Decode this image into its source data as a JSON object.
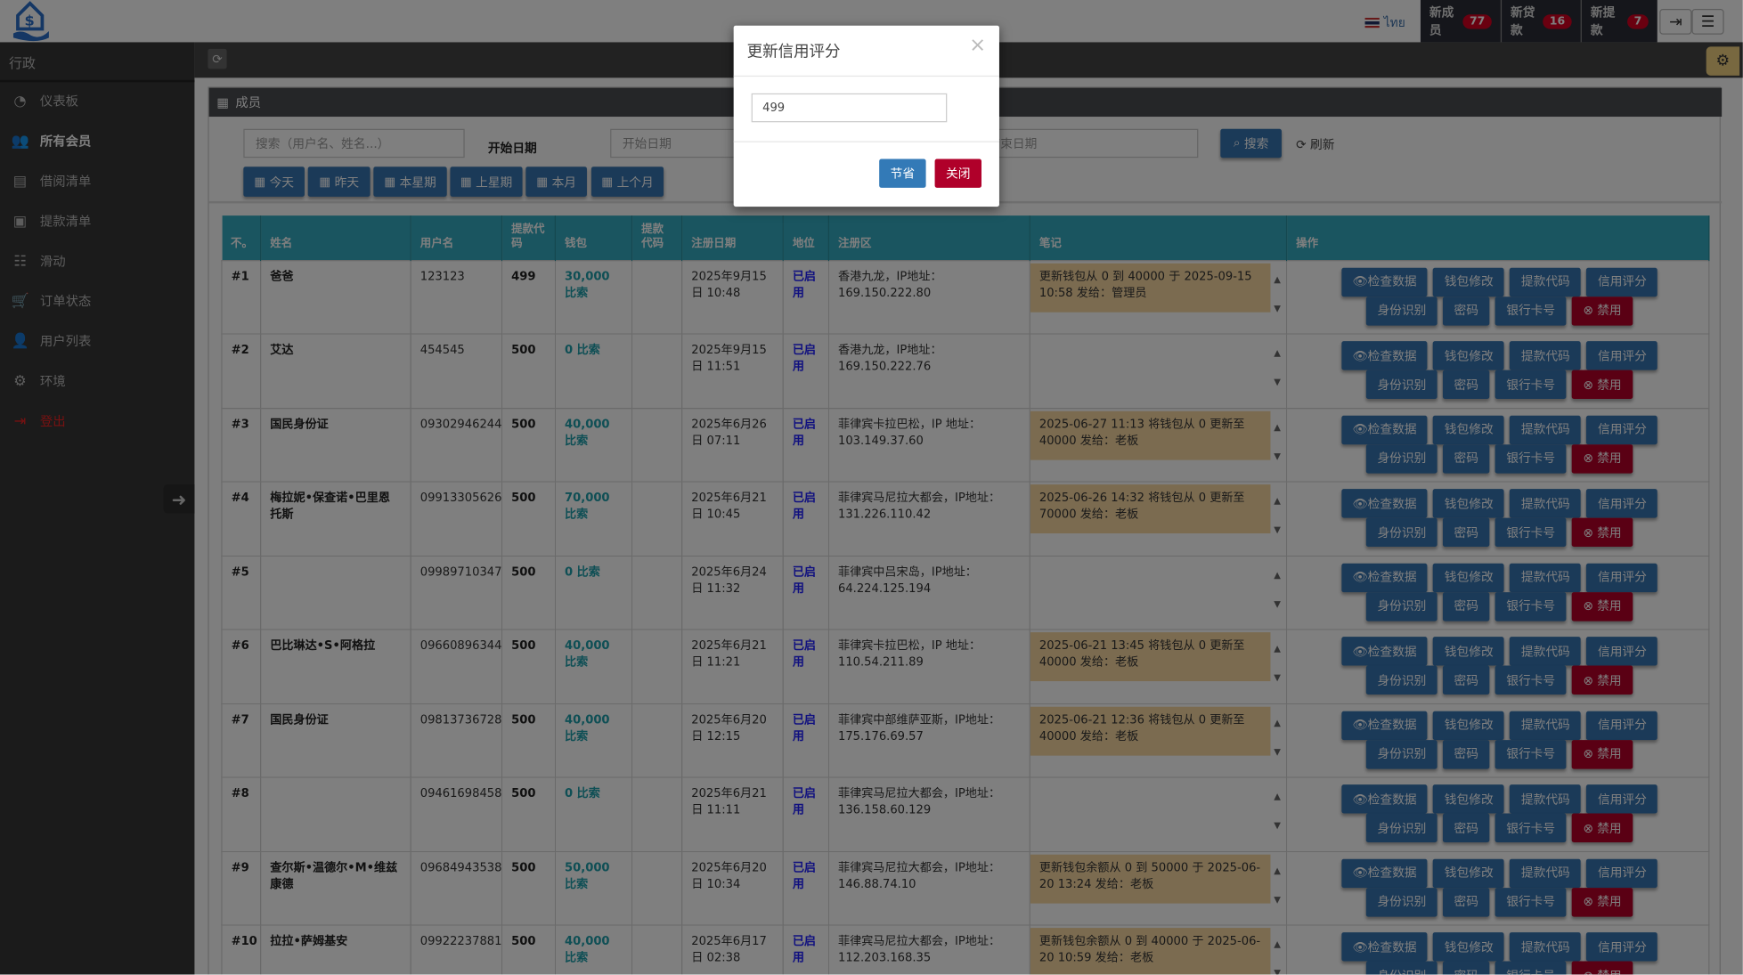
{
  "topbar": {
    "lang": "ไทย",
    "badges": [
      {
        "label": "新成员",
        "count": "77"
      },
      {
        "label": "新贷款",
        "count": "16"
      },
      {
        "label": "新提款",
        "count": "7"
      }
    ]
  },
  "sidebar": {
    "title": "行政",
    "items": [
      {
        "label": "仪表板",
        "icon": "dashboard-icon",
        "glyph": "◔"
      },
      {
        "label": "所有会员",
        "icon": "users-icon",
        "glyph": "👥",
        "active": true
      },
      {
        "label": "借阅清单",
        "icon": "book-icon",
        "glyph": "▤"
      },
      {
        "label": "提款清单",
        "icon": "money-icon",
        "glyph": "▣"
      },
      {
        "label": "滑动",
        "icon": "sliders-icon",
        "glyph": "☷"
      },
      {
        "label": "订单状态",
        "icon": "cart-icon",
        "glyph": "🛒"
      },
      {
        "label": "用户列表",
        "icon": "user-icon",
        "glyph": "👤"
      },
      {
        "label": "环境",
        "icon": "gear-icon",
        "glyph": "⚙"
      },
      {
        "label": "登出",
        "icon": "logout-icon",
        "glyph": "⇥",
        "logout": true
      }
    ]
  },
  "panel": {
    "title": "成员",
    "search_placeholder": "搜索（用户名、姓名...）",
    "start_label": "开始日期",
    "start_placeholder": "开始日期",
    "end_placeholder": "结束日期",
    "search_btn": "搜索",
    "refresh_btn": "刷新",
    "date_buttons": [
      "今天",
      "昨天",
      "本星期",
      "上星期",
      "本月",
      "上个月"
    ]
  },
  "table": {
    "headers": [
      "不。",
      "姓名",
      "用户名",
      "提款代码",
      "钱包",
      "提款代码",
      "注册日期",
      "地位",
      "注册区",
      "笔记",
      "操作"
    ],
    "actions": [
      "检查数据",
      "钱包修改",
      "提款代码",
      "信用评分",
      "身份识别",
      "密码",
      "银行卡号",
      "禁用"
    ],
    "rows": [
      {
        "no": "#1",
        "name": "爸爸",
        "username": "123123",
        "code": "499",
        "wallet": "30,000 比索",
        "wcode": "",
        "date": "2025年9月15日 10:48",
        "status": "已启用",
        "region": "香港九龙，IP地址：169.150.222.80",
        "note": "更新钱包从 0 到 40000 于 2025-09-15 10:58 发给：管理员"
      },
      {
        "no": "#2",
        "name": "艾达",
        "username": "454545",
        "code": "500",
        "wallet": "0 比索",
        "wcode": "",
        "date": "2025年9月15日 11:51",
        "status": "已启用",
        "region": "香港九龙，IP地址：169.150.222.76",
        "note": ""
      },
      {
        "no": "#3",
        "name": "国民身份证",
        "username": "09302946244",
        "code": "500",
        "wallet": "40,000 比索",
        "wcode": "",
        "date": "2025年6月26日 07:11",
        "status": "已启用",
        "region": "菲律宾卡拉巴松，IP 地址：103.149.37.60",
        "note": "2025-06-27 11:13 将钱包从 0 更新至 40000 发给：老板"
      },
      {
        "no": "#4",
        "name": "梅拉妮•保查诺•巴里恩托斯",
        "username": "09913305626",
        "code": "500",
        "wallet": "70,000 比索",
        "wcode": "",
        "date": "2025年6月21日 10:45",
        "status": "已启用",
        "region": "菲律宾马尼拉大都会，IP地址：131.226.110.42",
        "note": "2025-06-26 14:32 将钱包从 0 更新至 70000 发给：老板"
      },
      {
        "no": "#5",
        "name": "",
        "username": "09989710347",
        "code": "500",
        "wallet": "0 比索",
        "wcode": "",
        "date": "2025年6月24日 11:32",
        "status": "已启用",
        "region": "菲律宾中吕宋岛，IP地址：64.224.125.194",
        "note": ""
      },
      {
        "no": "#6",
        "name": "巴比琳达•S•阿格拉",
        "username": "09660896344",
        "code": "500",
        "wallet": "40,000 比索",
        "wcode": "",
        "date": "2025年6月21日 11:21",
        "status": "已启用",
        "region": "菲律宾卡拉巴松，IP 地址：110.54.211.89",
        "note": "2025-06-21 13:45 将钱包从 0 更新至 40000 发给：老板"
      },
      {
        "no": "#7",
        "name": "国民身份证",
        "username": "09813736728",
        "code": "500",
        "wallet": "40,000 比索",
        "wcode": "",
        "date": "2025年6月20日 12:15",
        "status": "已启用",
        "region": "菲律宾中部维萨亚斯，IP地址：175.176.69.57",
        "note": "2025-06-21 12:36 将钱包从 0 更新至 40000 发给：老板"
      },
      {
        "no": "#8",
        "name": "",
        "username": "09461698458",
        "code": "500",
        "wallet": "0 比索",
        "wcode": "",
        "date": "2025年6月21日 11:11",
        "status": "已启用",
        "region": "菲律宾马尼拉大都会，IP地址：136.158.60.129",
        "note": ""
      },
      {
        "no": "#9",
        "name": "查尔斯•温德尔•M•维兹康德",
        "username": "09684943538",
        "code": "500",
        "wallet": "50,000 比索",
        "wcode": "",
        "date": "2025年6月20日 10:34",
        "status": "已启用",
        "region": "菲律宾马尼拉大都会，IP地址：146.88.74.10",
        "note": "更新钱包余额从 0 到 50000 于 2025-06-20 13:24 发给：老板"
      },
      {
        "no": "#10",
        "name": "拉拉•萨姆基安",
        "username": "09922237881",
        "code": "500",
        "wallet": "40,000 比索",
        "wcode": "",
        "date": "2025年6月17日 02:38",
        "status": "已启用",
        "region": "菲律宾马尼拉大都会，IP地址：112.203.168.35",
        "note": "更新钱包余额从 0 到 40000 于 2025-06-20 10:59 发给：老板"
      }
    ]
  },
  "modal": {
    "title": "更新信用评分",
    "value": "499",
    "save": "节省",
    "close": "关闭"
  },
  "colors": {
    "header": "#34aac0",
    "button": "#3674b0",
    "danger": "#b40028",
    "note": "#f6d6a0"
  }
}
